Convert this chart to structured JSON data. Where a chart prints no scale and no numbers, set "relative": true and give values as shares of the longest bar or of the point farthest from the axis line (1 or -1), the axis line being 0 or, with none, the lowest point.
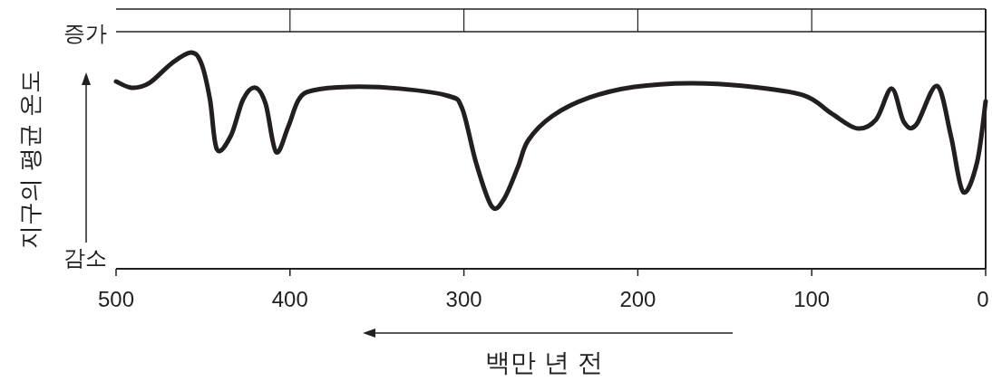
{
  "chart_data": {
    "type": "line",
    "relative": true,
    "xlabel": "백만 년 전",
    "ylabel": "지구의 평균 온도",
    "annotations": [
      "증가",
      "감소"
    ],
    "xlim": [
      500,
      0
    ],
    "xticks": [
      500,
      400,
      300,
      200,
      100,
      0
    ],
    "x": [
      500,
      491,
      481,
      468,
      457,
      451,
      446,
      442,
      434,
      427,
      420,
      414,
      408,
      401,
      395,
      387,
      366,
      337,
      309,
      301,
      293,
      284,
      277,
      269,
      263,
      249,
      228,
      202,
      170,
      139,
      105,
      89,
      74,
      63,
      54,
      47,
      40,
      28,
      20,
      13,
      5,
      0
    ],
    "series": [
      {
        "color": "#231f20",
        "values": [
          0.866,
          0.837,
          0.858,
          0.95,
          1.0,
          0.95,
          0.782,
          0.552,
          0.615,
          0.782,
          0.837,
          0.762,
          0.54,
          0.657,
          0.782,
          0.824,
          0.841,
          0.833,
          0.799,
          0.741,
          0.49,
          0.289,
          0.322,
          0.469,
          0.594,
          0.707,
          0.791,
          0.841,
          0.858,
          0.845,
          0.803,
          0.72,
          0.649,
          0.69,
          0.833,
          0.678,
          0.665,
          0.845,
          0.615,
          0.356,
          0.49,
          0.774
        ]
      }
    ],
    "marker": "none",
    "line_style": "solid"
  }
}
